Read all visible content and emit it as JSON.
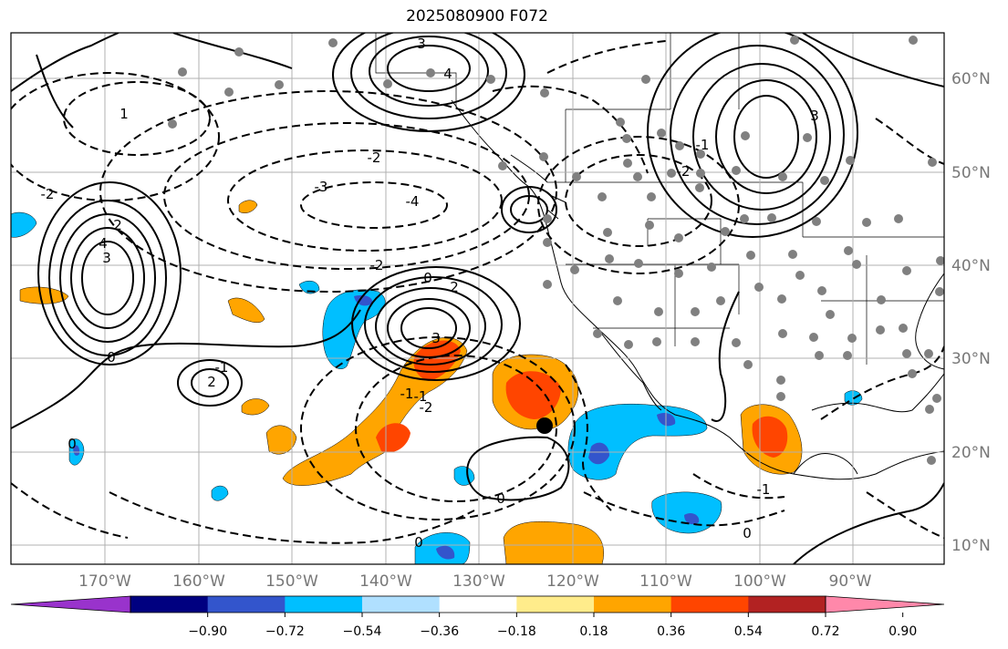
{
  "title": "2025080900 F072",
  "map": {
    "lon_labels": [
      "170°W",
      "160°W",
      "150°W",
      "140°W",
      "130°W",
      "120°W",
      "110°W",
      "100°W",
      "90°W"
    ],
    "lat_labels": [
      "60°N",
      "50°N",
      "40°N",
      "30°N",
      "20°N",
      "10°N"
    ],
    "contour_labels": [
      "3",
      "4",
      "2",
      "3",
      "4",
      "-2",
      "-3",
      "-4",
      "-2",
      "0",
      "2",
      "3",
      "-1",
      "2",
      "-1",
      "0",
      "-2",
      "1",
      "3",
      "-2",
      "-1",
      "0",
      "-1",
      "0",
      "0",
      "0",
      "-1",
      "-2"
    ],
    "marker_color": "#000000",
    "station_dot_color": "#808080",
    "grid_color": "#b0b0b0"
  },
  "colorbar": {
    "colors": [
      "#9933cc",
      "#000080",
      "#3355cc",
      "#00bfff",
      "#b0e0ff",
      "#ffffff",
      "#ffec8b",
      "#ffa500",
      "#ff4500",
      "#b22222",
      "#ff88aa"
    ],
    "tick_labels": [
      "−0.90",
      "−0.72",
      "−0.54",
      "−0.36",
      "−0.18",
      "0.18",
      "0.36",
      "0.54",
      "0.72",
      "0.90"
    ]
  }
}
